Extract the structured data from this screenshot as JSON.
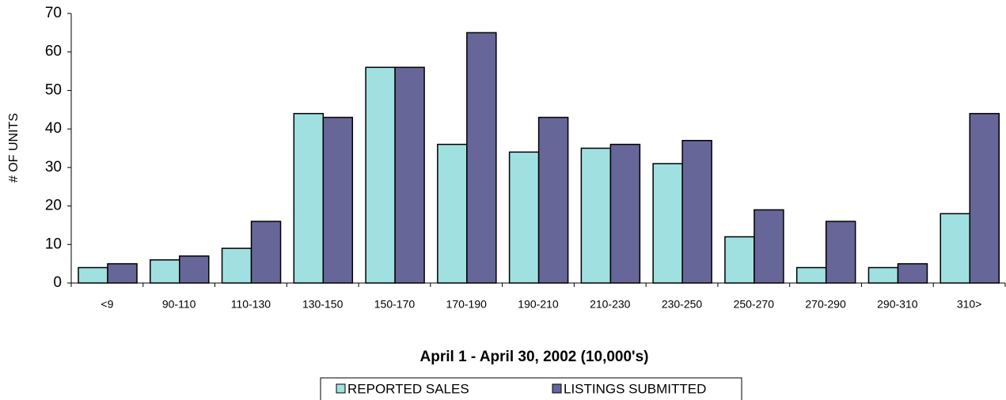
{
  "chart_data": {
    "type": "bar",
    "x_label": "April 1 - April 30, 2002 (10,000's)",
    "y_label": "# OF UNITS",
    "categories": [
      "<9",
      "90-110",
      "110-130",
      "130-150",
      "150-170",
      "170-190",
      "190-210",
      "210-230",
      "230-250",
      "250-270",
      "270-290",
      "290-310",
      "310>"
    ],
    "series": [
      {
        "name": "REPORTED SALES",
        "color": "#a0e0e0",
        "values": [
          4,
          6,
          9,
          44,
          56,
          36,
          34,
          35,
          31,
          12,
          4,
          4,
          18
        ]
      },
      {
        "name": "LISTINGS SUBMITTED",
        "color": "#666699",
        "values": [
          5,
          7,
          16,
          43,
          56,
          65,
          43,
          36,
          37,
          19,
          16,
          5,
          44
        ]
      }
    ],
    "ylim": [
      0,
      70
    ],
    "yticks": [
      0,
      10,
      20,
      30,
      40,
      50,
      60,
      70
    ]
  }
}
